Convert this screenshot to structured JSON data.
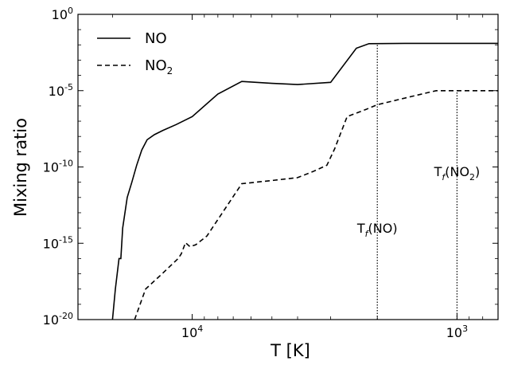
{
  "chart_data": {
    "type": "line",
    "title": "",
    "xlabel": "T [K]",
    "ylabel": "Mixing ratio",
    "x_scale": "log",
    "x_reversed": true,
    "xlim": [
      27000,
      700
    ],
    "y_scale": "log",
    "ylim": [
      1e-20,
      1
    ],
    "grid": false,
    "legend_position": "top-left",
    "x_tick_labels": [
      {
        "value": 10000,
        "base": "10",
        "exp": "4"
      },
      {
        "value": 1000,
        "base": "10",
        "exp": "3"
      }
    ],
    "y_tick_labels": [
      {
        "value": 1,
        "base": "10",
        "exp": "0"
      },
      {
        "value": 1e-05,
        "base": "10",
        "exp": "-5"
      },
      {
        "value": 1e-10,
        "base": "10",
        "exp": "-10"
      },
      {
        "value": 1e-15,
        "base": "10",
        "exp": "-15"
      },
      {
        "value": 1e-20,
        "base": "10",
        "exp": "-20"
      }
    ],
    "series": [
      {
        "name": "NO",
        "label_main": "NO",
        "label_sub": "",
        "style": "solid",
        "color": "#000000",
        "points": [
          [
            20000,
            1e-20
          ],
          [
            19500,
            1e-18
          ],
          [
            18900,
            1e-16
          ],
          [
            18600,
            1e-16
          ],
          [
            18300,
            1e-14
          ],
          [
            17600,
            1e-12
          ],
          [
            16900,
            1e-11
          ],
          [
            16200,
            1.3e-10
          ],
          [
            15500,
            1.3e-09
          ],
          [
            14800,
            6e-09
          ],
          [
            13900,
            1.3e-08
          ],
          [
            12900,
            2.5e-08
          ],
          [
            11500,
            6e-08
          ],
          [
            10000,
            2e-07
          ],
          [
            8000,
            6e-06
          ],
          [
            6500,
            4e-05
          ],
          [
            5000,
            3e-05
          ],
          [
            4000,
            2.5e-05
          ],
          [
            3000,
            3.5e-05
          ],
          [
            2400,
            0.006
          ],
          [
            2150,
            0.012
          ],
          [
            1500,
            0.0125
          ],
          [
            1000,
            0.0125
          ],
          [
            700,
            0.0125
          ]
        ]
      },
      {
        "name": "NO2",
        "label_main": "NO",
        "label_sub": "2",
        "style": "dashed",
        "color": "#000000",
        "points": [
          [
            16500,
            1e-20
          ],
          [
            15000,
            1e-18
          ],
          [
            13000,
            1e-17
          ],
          [
            11300,
            1e-16
          ],
          [
            11000,
            2e-16
          ],
          [
            10600,
            1.1e-15
          ],
          [
            10200,
            6e-16
          ],
          [
            9700,
            8e-16
          ],
          [
            8800,
            3e-15
          ],
          [
            6500,
            8e-12
          ],
          [
            5000,
            1.3e-11
          ],
          [
            4000,
            2e-11
          ],
          [
            3500,
            5e-11
          ],
          [
            3100,
            1.3e-10
          ],
          [
            2900,
            1.5e-09
          ],
          [
            2600,
            2e-07
          ],
          [
            2200,
            6e-07
          ],
          [
            2000,
            1.2e-06
          ],
          [
            1500,
            4e-06
          ],
          [
            1200,
            1e-05
          ],
          [
            1000,
            1e-05
          ],
          [
            700,
            1e-05
          ]
        ]
      }
    ],
    "annotations": [
      {
        "text_main": "T",
        "text_sub": "f",
        "text_tail": "(NO)",
        "x": 2000,
        "y_from": 1e-20,
        "y_to": 0.0125,
        "label_y": 5e-15
      },
      {
        "text_main": "T",
        "text_sub": "f",
        "text_tail": "(NO",
        "text_sub2": "2",
        "text_tail2": ")",
        "x": 1000,
        "y_from": 1e-20,
        "y_to": 1e-05,
        "label_y": 2.5e-11
      }
    ]
  }
}
